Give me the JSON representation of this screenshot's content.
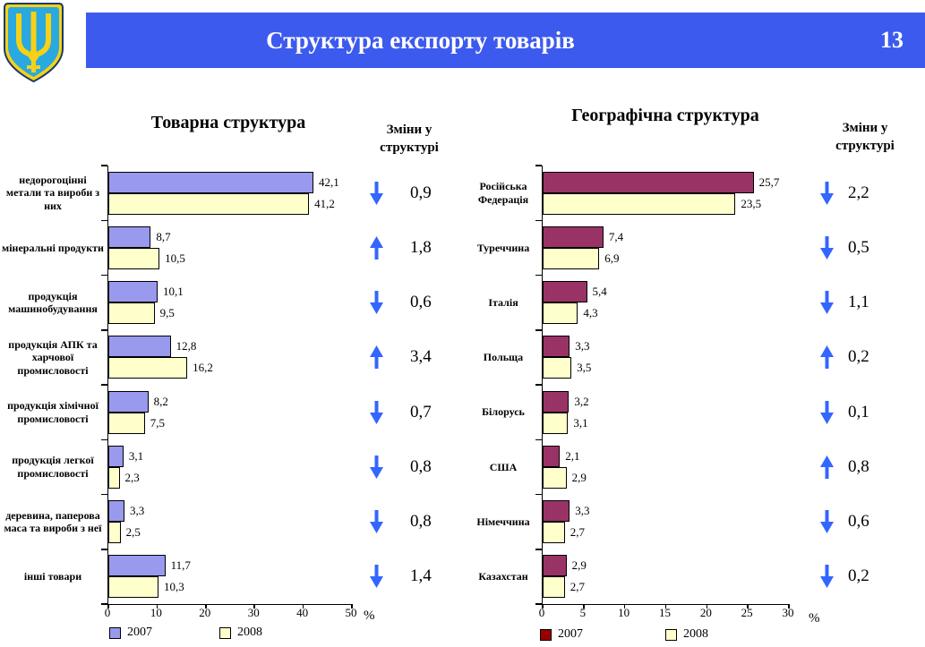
{
  "slide": {
    "title": "Структура експорту товарів",
    "page_number": "13",
    "header_color": "#3D5AEF",
    "emblem": "ukraine-coat-of-arms",
    "emblem_colors": {
      "shield": "#29A9E0",
      "trident": "#F7D117",
      "outline": "#1B3A6B"
    }
  },
  "changes_arrow_color": "#3366FF",
  "chart_data": [
    {
      "type": "bar",
      "orientation": "horizontal",
      "title": "Товарна структура",
      "categories": [
        "недорогоцінні метали та вироби з них",
        "мінеральні продукти",
        "продукція машинобудування",
        "продукція АПК та харчової промисловості",
        "продукція хімічної промисловості",
        "продукція легкої промисловості",
        "деревина, паперова маса та вироби з неї",
        "інші товари"
      ],
      "series": [
        {
          "name": "2007",
          "color": "#9999EE",
          "legend_color": "#9999EE",
          "values": [
            42.1,
            8.7,
            10.1,
            12.8,
            8.2,
            3.1,
            3.3,
            11.7
          ]
        },
        {
          "name": "2008",
          "color": "#FFFFCC",
          "legend_color": "#FFFFCC",
          "values": [
            41.2,
            10.5,
            9.5,
            16.2,
            7.5,
            2.3,
            2.5,
            10.3
          ]
        }
      ],
      "xlim": [
        0,
        50
      ],
      "xticks": [
        0,
        10,
        20,
        30,
        40,
        50
      ],
      "xlabel": "%",
      "grid": false,
      "legend_position": "bottom",
      "changes": {
        "header": "Зміни у структурі",
        "items": [
          {
            "direction": "down",
            "value": "0,9"
          },
          {
            "direction": "up",
            "value": "1,8"
          },
          {
            "direction": "down",
            "value": "0,6"
          },
          {
            "direction": "up",
            "value": "3,4"
          },
          {
            "direction": "down",
            "value": "0,7"
          },
          {
            "direction": "down",
            "value": "0,8"
          },
          {
            "direction": "down",
            "value": "0,8"
          },
          {
            "direction": "down",
            "value": "1,4"
          }
        ]
      }
    },
    {
      "type": "bar",
      "orientation": "horizontal",
      "title": "Географічна структура",
      "categories": [
        "Російська Федерація",
        "Туреччина",
        "Італія",
        "Польща",
        "Білорусь",
        "США",
        "Німеччина",
        "Казахстан"
      ],
      "series": [
        {
          "name": "2007",
          "color": "#993366",
          "legend_color": "#990000",
          "values": [
            25.7,
            7.4,
            5.4,
            3.3,
            3.2,
            2.1,
            3.3,
            2.9
          ]
        },
        {
          "name": "2008",
          "color": "#FFFFCC",
          "legend_color": "#FFFFCC",
          "values": [
            23.5,
            6.9,
            4.3,
            3.5,
            3.1,
            2.9,
            2.7,
            2.7
          ]
        }
      ],
      "xlim": [
        0,
        30
      ],
      "xticks": [
        0,
        5,
        10,
        15,
        20,
        25,
        30
      ],
      "xlabel": "%",
      "grid": false,
      "legend_position": "bottom",
      "changes": {
        "header": "Зміни у структурі",
        "items": [
          {
            "direction": "down",
            "value": "2,2"
          },
          {
            "direction": "down",
            "value": "0,5"
          },
          {
            "direction": "down",
            "value": "1,1"
          },
          {
            "direction": "up",
            "value": "0,2"
          },
          {
            "direction": "down",
            "value": "0,1"
          },
          {
            "direction": "up",
            "value": "0,8"
          },
          {
            "direction": "down",
            "value": "0,6"
          },
          {
            "direction": "down",
            "value": "0,2"
          }
        ]
      }
    }
  ]
}
